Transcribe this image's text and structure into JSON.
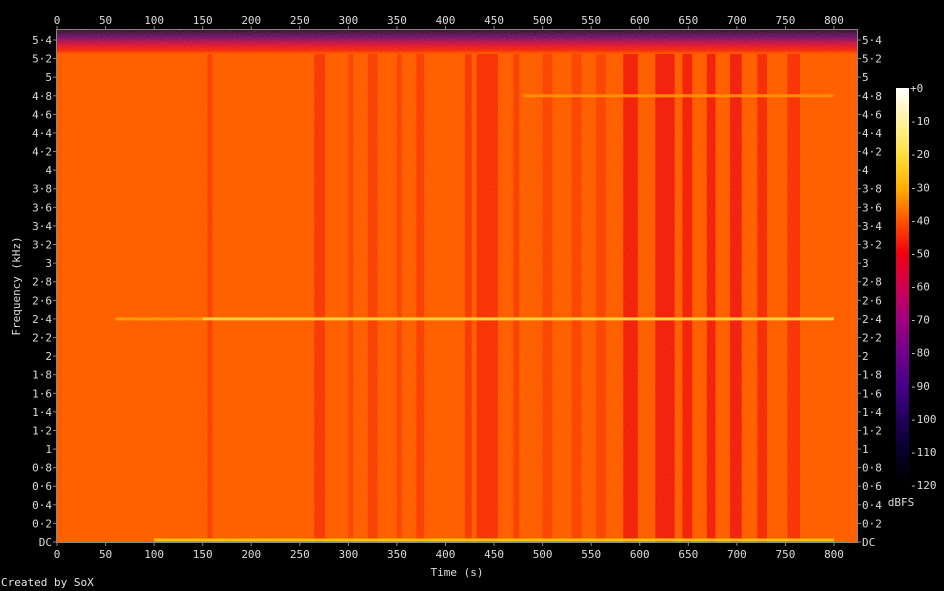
{
  "chart_data": {
    "type": "heatmap",
    "title": "",
    "xlabel": "Time (s)",
    "ylabel": "Frequency (kHz)",
    "xlim": [
      0,
      823
    ],
    "ylim": [
      0,
      5.51
    ],
    "x_ticks": [
      "0",
      "50",
      "100",
      "150",
      "200",
      "250",
      "300",
      "350",
      "400",
      "450",
      "500",
      "550",
      "600",
      "650",
      "700",
      "750",
      "800"
    ],
    "x_tick_values": [
      0,
      50,
      100,
      150,
      200,
      250,
      300,
      350,
      400,
      450,
      500,
      550,
      600,
      650,
      700,
      750,
      800
    ],
    "y_ticks": [
      "DC",
      "0·2",
      "0·4",
      "0·6",
      "0·8",
      "1",
      "1·2",
      "1·4",
      "1·6",
      "1·8",
      "2",
      "2·2",
      "2·4",
      "2·6",
      "2·8",
      "3",
      "3·2",
      "3·4",
      "3·6",
      "3·8",
      "4",
      "4·2",
      "4·4",
      "4·6",
      "4·8",
      "5",
      "5·2",
      "5·4"
    ],
    "y_tick_values": [
      0,
      0.2,
      0.4,
      0.6,
      0.8,
      1,
      1.2,
      1.4,
      1.6,
      1.8,
      2,
      2.2,
      2.4,
      2.6,
      2.8,
      3,
      3.2,
      3.4,
      3.6,
      3.8,
      4,
      4.2,
      4.4,
      4.6,
      4.8,
      5,
      5.2,
      5.4
    ],
    "colorbar": {
      "label": "dBFS",
      "ticks": [
        "+0",
        "-10",
        "-20",
        "-30",
        "-40",
        "-50",
        "-60",
        "-70",
        "-80",
        "-90",
        "-100",
        "-110",
        "-120"
      ],
      "range": [
        -120,
        0
      ],
      "colormap": [
        "#000000",
        "#080028",
        "#20005a",
        "#480088",
        "#70008a",
        "#a00080",
        "#d00050",
        "#f00010",
        "#ff5500",
        "#ffb000",
        "#ffe040",
        "#fff3a0",
        "#ffffff"
      ]
    },
    "background_level_dBFS": -40,
    "top_rolloff_khz": [
      5.25,
      5.51
    ],
    "attenuated_bands": [
      {
        "start": 155,
        "end": 160,
        "level": -45
      },
      {
        "start": 265,
        "end": 276,
        "level": -46
      },
      {
        "start": 300,
        "end": 305,
        "level": -44
      },
      {
        "start": 320,
        "end": 330,
        "level": -45
      },
      {
        "start": 350,
        "end": 355,
        "level": -44
      },
      {
        "start": 370,
        "end": 378,
        "level": -45
      },
      {
        "start": 420,
        "end": 427,
        "level": -46
      },
      {
        "start": 432,
        "end": 454,
        "level": -47
      },
      {
        "start": 470,
        "end": 476,
        "level": -45
      },
      {
        "start": 500,
        "end": 510,
        "level": -44
      },
      {
        "start": 530,
        "end": 540,
        "level": -44
      },
      {
        "start": 555,
        "end": 565,
        "level": -44
      },
      {
        "start": 583,
        "end": 598,
        "level": -50
      },
      {
        "start": 616,
        "end": 636,
        "level": -51
      },
      {
        "start": 644,
        "end": 654,
        "level": -50
      },
      {
        "start": 669,
        "end": 678,
        "level": -50
      },
      {
        "start": 693,
        "end": 705,
        "level": -51
      },
      {
        "start": 721,
        "end": 731,
        "level": -48
      },
      {
        "start": 752,
        "end": 765,
        "level": -47
      }
    ],
    "tones": [
      {
        "freq_khz": 2.4,
        "start": 60,
        "end": 150,
        "level": -32
      },
      {
        "freq_khz": 2.4,
        "start": 150,
        "end": 800,
        "level": -20
      },
      {
        "freq_khz": 4.8,
        "start": 480,
        "end": 800,
        "level": -34
      },
      {
        "freq_khz": 0,
        "start": 100,
        "end": 800,
        "level": -25
      }
    ]
  },
  "footer": {
    "credit": "Created by SoX"
  }
}
